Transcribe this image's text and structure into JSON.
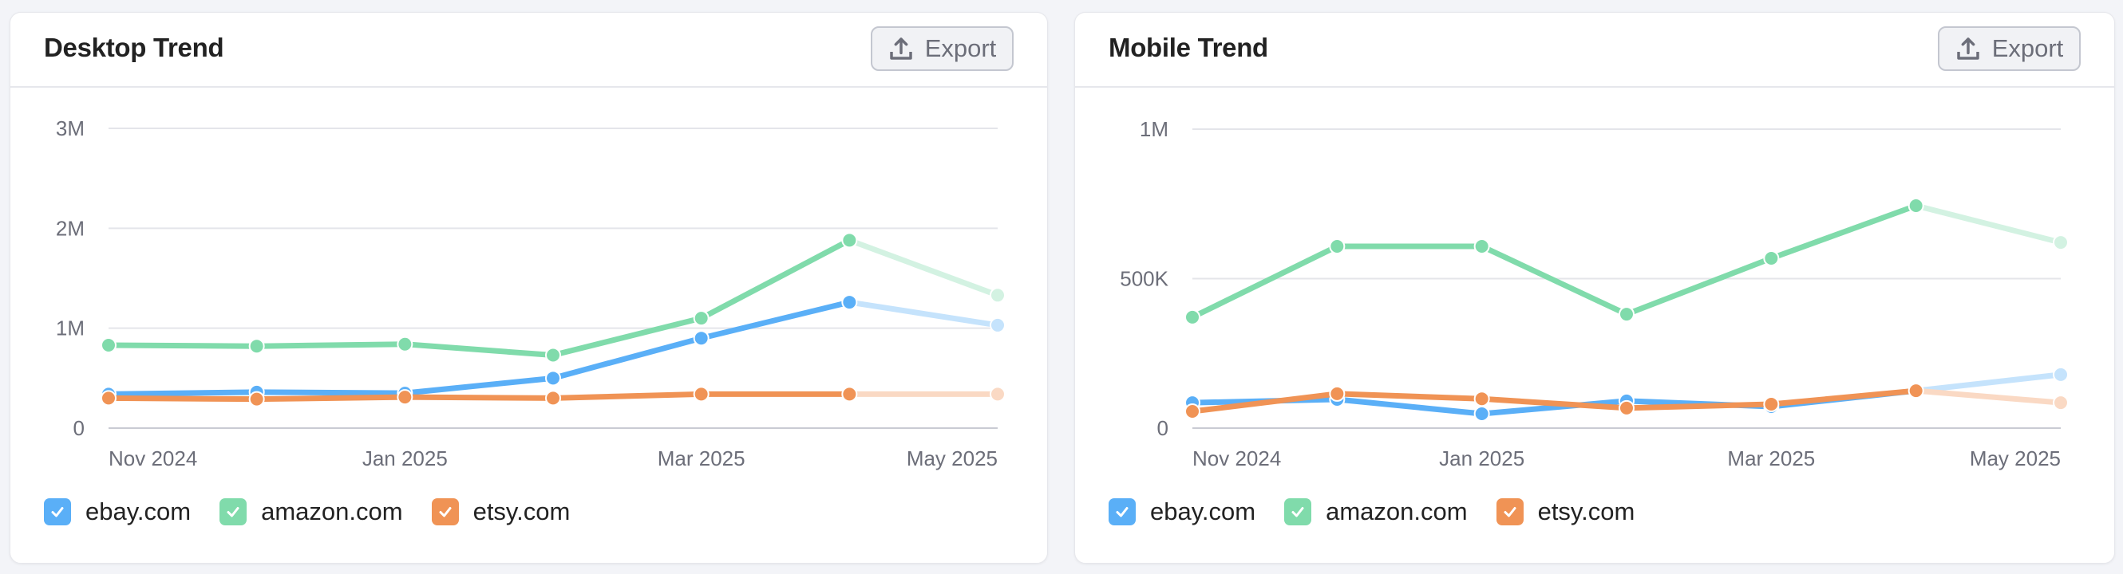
{
  "cards": [
    {
      "id": "desktop",
      "title": "Desktop Trend",
      "export_label": "Export",
      "y_ticks": [
        "0",
        "1M",
        "2M",
        "3M"
      ],
      "x_ticks": [
        "Nov 2024",
        "Jan 2025",
        "Mar 2025",
        "May 2025"
      ],
      "legend": [
        {
          "label": "ebay.com",
          "color": "#5aaff7",
          "checked": true
        },
        {
          "label": "amazon.com",
          "color": "#80dbab",
          "checked": true
        },
        {
          "label": "etsy.com",
          "color": "#f09355",
          "checked": true
        }
      ]
    },
    {
      "id": "mobile",
      "title": "Mobile Trend",
      "export_label": "Export",
      "y_ticks": [
        "0",
        "500K",
        "1M"
      ],
      "x_ticks": [
        "Nov 2024",
        "Jan 2025",
        "Mar 2025",
        "May 2025"
      ],
      "legend": [
        {
          "label": "ebay.com",
          "color": "#5aaff7",
          "checked": true
        },
        {
          "label": "amazon.com",
          "color": "#80dbab",
          "checked": true
        },
        {
          "label": "etsy.com",
          "color": "#f09355",
          "checked": true
        }
      ]
    }
  ],
  "chart_data": [
    {
      "type": "line",
      "title": "Desktop Trend",
      "x": [
        "Nov 2024",
        "Dec 2024",
        "Jan 2025",
        "Feb 2025",
        "Mar 2025",
        "Apr 2025",
        "May 2025"
      ],
      "x_tick_labels": [
        "Nov 2024",
        "Jan 2025",
        "Mar 2025",
        "May 2025"
      ],
      "ylim": [
        0,
        3000000
      ],
      "y_tick_labels": [
        "0",
        "1M",
        "2M",
        "3M"
      ],
      "grid": true,
      "legend_position": "bottom",
      "note": "Last segment (Apr→May 2025) drawn faded",
      "series": [
        {
          "name": "ebay.com",
          "color": "#5aaff7",
          "values": [
            340000,
            360000,
            350000,
            500000,
            900000,
            1260000,
            1030000
          ]
        },
        {
          "name": "amazon.com",
          "color": "#80dbab",
          "values": [
            830000,
            820000,
            840000,
            730000,
            1100000,
            1880000,
            1330000
          ]
        },
        {
          "name": "etsy.com",
          "color": "#f09355",
          "values": [
            300000,
            290000,
            310000,
            300000,
            340000,
            340000,
            340000
          ]
        }
      ]
    },
    {
      "type": "line",
      "title": "Mobile Trend",
      "x": [
        "Nov 2024",
        "Dec 2024",
        "Jan 2025",
        "Feb 2025",
        "Mar 2025",
        "Apr 2025",
        "May 2025"
      ],
      "x_tick_labels": [
        "Nov 2024",
        "Jan 2025",
        "Mar 2025",
        "May 2025"
      ],
      "ylim": [
        0,
        1000000
      ],
      "y_tick_labels": [
        "0",
        "500K",
        "1M"
      ],
      "grid": true,
      "legend_position": "bottom",
      "note": "Last segment (Apr→May 2025) drawn faded",
      "series": [
        {
          "name": "ebay.com",
          "color": "#5aaff7",
          "values": [
            85000,
            96000,
            48000,
            91000,
            72000,
            125000,
            179000
          ]
        },
        {
          "name": "amazon.com",
          "color": "#80dbab",
          "values": [
            371000,
            608000,
            608000,
            381000,
            568000,
            744000,
            621000
          ]
        },
        {
          "name": "etsy.com",
          "color": "#f09355",
          "values": [
            56000,
            115000,
            98000,
            67000,
            80000,
            125000,
            85000
          ]
        }
      ]
    }
  ]
}
